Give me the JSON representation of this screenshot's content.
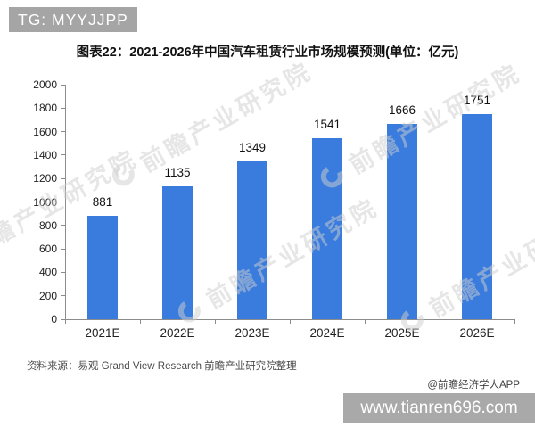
{
  "badge": {
    "label": "TG: MYYJJPP"
  },
  "chart_data": {
    "type": "bar",
    "title": "图表22：2021-2026年中国汽车租赁行业市场规模预测(单位：亿元)",
    "unit_label": "单位：亿元",
    "categories": [
      "2021E",
      "2022E",
      "2023E",
      "2024E",
      "2025E",
      "2026E"
    ],
    "values": [
      881,
      1135,
      1349,
      1541,
      1666,
      1751
    ],
    "ylim": [
      0,
      2000
    ],
    "yticks": [
      0,
      200,
      400,
      600,
      800,
      1000,
      1200,
      1400,
      1600,
      1800,
      2000
    ],
    "grid": false,
    "legend": "none",
    "value_labels": true,
    "bar_color": "#3a7cdd"
  },
  "watermark": {
    "text": "前瞻产业研究院"
  },
  "footer": {
    "source_note": "资料来源：易观 Grand View Research 前瞻产业研究院整理",
    "credit": "@前瞻经济学人APP",
    "site_bar": "www.tianren696.com"
  },
  "colors": {
    "bar": "#3a7cdd",
    "badge_bg": "#a5a5a5",
    "site_bar_bg": "#a9a9a9",
    "axis": "#8c8c8c",
    "watermark": "#cfcfcf",
    "title_text": "#111111",
    "footer_text": "#4a4a4a"
  }
}
